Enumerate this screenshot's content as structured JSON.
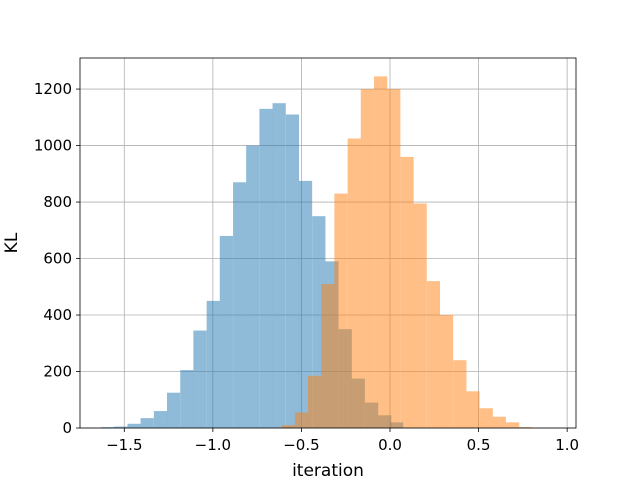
{
  "chart_data": {
    "type": "bar",
    "subtype": "overlapping-histogram",
    "title": "",
    "xlabel": "iteration",
    "ylabel": "KL",
    "xlim": [
      -1.75,
      1.05
    ],
    "ylim": [
      0,
      1310
    ],
    "xticks": [
      -1.5,
      -1.0,
      -0.5,
      0.0,
      0.5,
      1.0
    ],
    "xtick_labels": [
      "−1.5",
      "−1.0",
      "−0.5",
      "0.0",
      "0.5",
      "1.0"
    ],
    "yticks": [
      0,
      200,
      400,
      600,
      800,
      1000,
      1200
    ],
    "ytick_labels": [
      "0",
      "200",
      "400",
      "600",
      "800",
      "1000",
      "1200"
    ],
    "grid": true,
    "legend": "none",
    "series": [
      {
        "color": "#1f77b4",
        "opacity": 0.5,
        "bin_width": 0.0745,
        "bin_left_edges": [
          -1.631,
          -1.557,
          -1.482,
          -1.408,
          -1.333,
          -1.259,
          -1.184,
          -1.11,
          -1.035,
          -0.961,
          -0.886,
          -0.812,
          -0.737,
          -0.663,
          -0.588,
          -0.514,
          -0.439,
          -0.365,
          -0.29,
          -0.216,
          -0.141,
          -0.067,
          -0.0
        ],
        "values": [
          3,
          5,
          15,
          35,
          60,
          125,
          205,
          345,
          450,
          680,
          870,
          1000,
          1130,
          1150,
          1110,
          875,
          750,
          590,
          350,
          175,
          90,
          45,
          20
        ]
      },
      {
        "color": "#ff7f0e",
        "opacity": 0.5,
        "bin_width": 0.0745,
        "bin_left_edges": [
          -0.612,
          -0.537,
          -0.463,
          -0.388,
          -0.314,
          -0.239,
          -0.165,
          -0.09,
          -0.016,
          0.059,
          0.133,
          0.208,
          0.282,
          0.357,
          0.431,
          0.506,
          0.58,
          0.655,
          0.729
        ],
        "values": [
          10,
          55,
          185,
          510,
          830,
          1025,
          1200,
          1245,
          1200,
          960,
          795,
          520,
          400,
          240,
          130,
          70,
          40,
          20,
          3
        ]
      }
    ]
  }
}
